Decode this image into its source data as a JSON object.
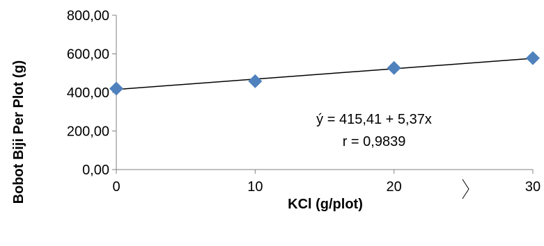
{
  "chart_data": {
    "type": "scatter",
    "title": "",
    "xlabel": "KCl (g/plot)",
    "ylabel": "Bobot Biji Per Plot (g)",
    "xlim": [
      0,
      30
    ],
    "ylim": [
      0,
      800
    ],
    "x_ticks": [
      "0",
      "10",
      "20",
      "30"
    ],
    "y_ticks": [
      "0,00",
      "200,00",
      "400,00",
      "600,00",
      "800,00"
    ],
    "grid": false,
    "legend": "none",
    "points": [
      {
        "x": 0,
        "y": 420
      },
      {
        "x": 10,
        "y": 458
      },
      {
        "x": 20,
        "y": 527
      },
      {
        "x": 30,
        "y": 578
      }
    ],
    "marker_color": "#4F81BD",
    "trendline": {
      "intercept": 415.41,
      "slope": 5.37,
      "color": "#000000"
    },
    "annotation": {
      "equation": "ý = 415,41 + 5,37x",
      "r": "r = 0,9839"
    }
  }
}
